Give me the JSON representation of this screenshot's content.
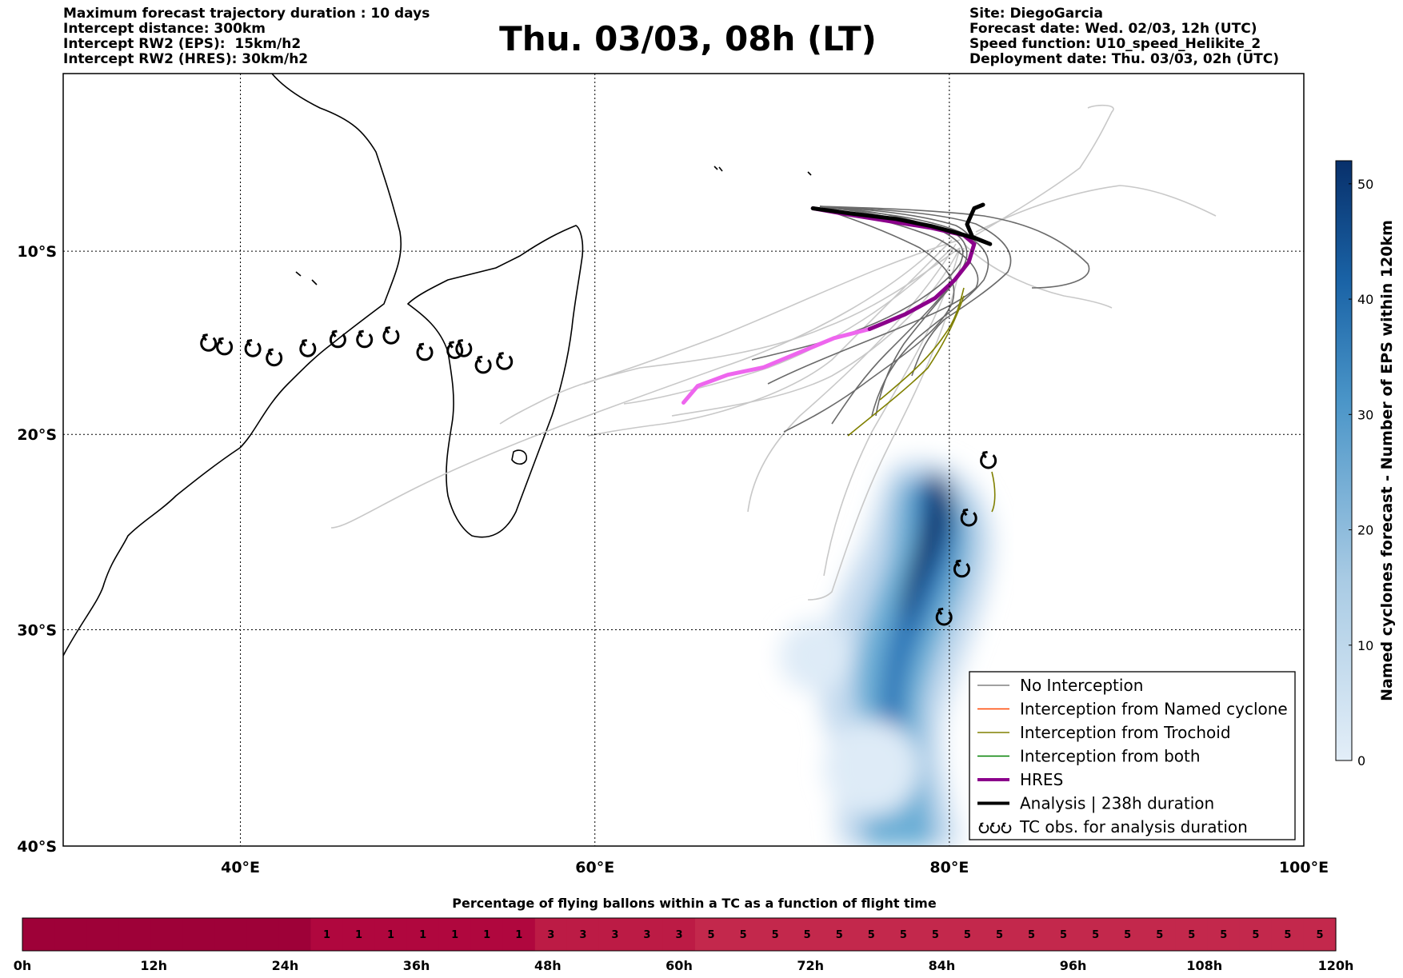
{
  "header": {
    "left": [
      "Maximum forecast trajectory duration : 10 days",
      "Intercept distance: 300km",
      "Intercept RW2 (EPS):  15km/h2",
      "Intercept RW2 (HRES): 30km/h2"
    ],
    "title": "Thu. 03/03, 08h (LT)",
    "right": [
      "Site: DiegoGarcia",
      "Forecast date: Wed. 02/03, 12h (UTC)",
      "Speed function: U10_speed_Helikite_2",
      "Deployment date: Thu. 03/03, 02h (UTC)"
    ]
  },
  "map": {
    "lon_range": [
      30,
      100
    ],
    "lat_range": [
      -40,
      0
    ],
    "lon_ticks": [
      {
        "v": 40,
        "label": "40°E"
      },
      {
        "v": 60,
        "label": "60°E"
      },
      {
        "v": 80,
        "label": "80°E"
      },
      {
        "v": 100,
        "label": "100°E"
      }
    ],
    "lat_ticks": [
      {
        "v": -10,
        "label": "10°S"
      },
      {
        "v": -20,
        "label": "20°S"
      },
      {
        "v": -30,
        "label": "30°S"
      },
      {
        "v": -40,
        "label": "40°S"
      }
    ],
    "colors": {
      "no_interception": "#808080",
      "named_cyclone": "#ff4500",
      "trochoid": "#808000",
      "both": "#008000",
      "hres": "#8b008b",
      "hres_early": "#ee66ee",
      "analysis": "#000000",
      "light_track": "#c8c8c8"
    },
    "analysis_track": [
      [
        72.3,
        -7.6
      ],
      [
        74.5,
        -7.9
      ],
      [
        77,
        -8.2
      ],
      [
        79,
        -8.6
      ],
      [
        80.5,
        -9.0
      ],
      [
        81.5,
        -9.3
      ],
      [
        82.3,
        -9.6
      ],
      [
        81.3,
        -9.2
      ],
      [
        81,
        -8.5
      ],
      [
        81.4,
        -7.6
      ],
      [
        81.9,
        -7.4
      ]
    ],
    "hres_track": [
      [
        65,
        -18.3
      ],
      [
        65.8,
        -17.4
      ],
      [
        67.5,
        -16.8
      ],
      [
        69.5,
        -16.4
      ],
      [
        71.5,
        -15.6
      ],
      [
        73.5,
        -14.8
      ],
      [
        75.5,
        -14.3
      ],
      [
        77.5,
        -13.5
      ],
      [
        79.2,
        -12.6
      ],
      [
        80.3,
        -11.6
      ],
      [
        81.1,
        -10.6
      ],
      [
        81.4,
        -9.6
      ],
      [
        80.8,
        -9.1
      ],
      [
        79,
        -8.7
      ],
      [
        76.5,
        -8.3
      ],
      [
        74,
        -7.9
      ],
      [
        72.3,
        -7.6
      ]
    ],
    "hres_early_until_index": 6,
    "tc_obs_positions": [
      [
        38.2,
        -15.1
      ],
      [
        39.1,
        -15.3
      ],
      [
        40.7,
        -15.4
      ],
      [
        41.9,
        -15.9
      ],
      [
        43.8,
        -15.4
      ],
      [
        45.5,
        -14.9
      ],
      [
        47,
        -14.9
      ],
      [
        48.5,
        -14.7
      ],
      [
        50.4,
        -15.6
      ],
      [
        52.1,
        -15.5
      ],
      [
        52.6,
        -15.4
      ],
      [
        53.7,
        -16.3
      ],
      [
        54.9,
        -16.1
      ],
      [
        82.2,
        -21.4
      ],
      [
        81.1,
        -24.4
      ],
      [
        80.7,
        -27.0
      ],
      [
        79.7,
        -29.4
      ]
    ],
    "legend": [
      {
        "label": "No Interception",
        "style": "no_interception"
      },
      {
        "label": "Interception from Named cyclone",
        "style": "named_cyclone"
      },
      {
        "label": "Interception from Trochoid",
        "style": "trochoid"
      },
      {
        "label": "Interception from both",
        "style": "both"
      },
      {
        "label": "HRES",
        "style": "hres"
      },
      {
        "label": "Analysis | 238h duration",
        "style": "analysis"
      },
      {
        "label": "TC obs. for analysis duration",
        "style": "tc_obs"
      }
    ]
  },
  "colorbar": {
    "label": "Named cyclones forecast - Number of EPS within 120km",
    "range": [
      0,
      52
    ],
    "ticks": [
      0,
      10,
      20,
      30,
      40,
      50
    ],
    "low_color": "#e3eef8",
    "high_color": "#08306b"
  },
  "timebar": {
    "title": "Percentage of flying ballons within a TC as a function of flight time",
    "cells": [
      "",
      "",
      "",
      "",
      "",
      "",
      "",
      "",
      "",
      "1",
      "1",
      "1",
      "1",
      "1",
      "1",
      "1",
      "3",
      "3",
      "3",
      "3",
      "3",
      "5",
      "5",
      "5",
      "5",
      "5",
      "5",
      "5",
      "5",
      "5",
      "5",
      "5",
      "5",
      "5",
      "5",
      "5",
      "5",
      "5",
      "5",
      "5",
      "5"
    ],
    "cell_colors": {
      "": "#9e0138",
      "1": "#b0073e",
      "3": "#bc1b45",
      "5": "#c3284c"
    },
    "ticks": [
      "0h",
      "12h",
      "24h",
      "36h",
      "48h",
      "60h",
      "72h",
      "84h",
      "96h",
      "108h",
      "120h"
    ]
  }
}
